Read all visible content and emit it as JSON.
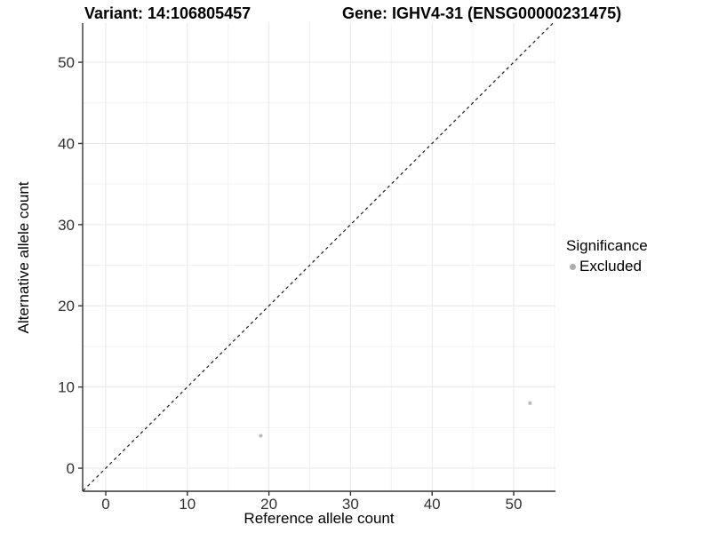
{
  "header": {
    "left_title": "Variant: 14:106805457",
    "right_title": "Gene: IGHV4-31 (ENSG00000231475)"
  },
  "chart_data": {
    "type": "scatter",
    "xlabel": "Reference allele count",
    "ylabel": "Alternative allele count",
    "x_ticks": [
      0,
      10,
      20,
      30,
      40,
      50
    ],
    "y_ticks": [
      0,
      10,
      20,
      30,
      40,
      50
    ],
    "x_minor": [
      5,
      15,
      25,
      35,
      45,
      55
    ],
    "y_minor": [
      5,
      15,
      25,
      35,
      45
    ],
    "xlim": [
      -2.83,
      55.12
    ],
    "ylim": [
      -2.84,
      54.82
    ],
    "grid": {
      "major_color": "#e7e7e7",
      "minor_color": "#f3f3f3"
    },
    "axis_color": "#333333",
    "tick_label_color": "#303030",
    "identity_line": {
      "style": "dashed",
      "slope": 1,
      "intercept": 0,
      "color": "#1a1a1a"
    },
    "points": [
      {
        "x": 19,
        "y": 4,
        "series": "Excluded"
      },
      {
        "x": 52,
        "y": 8,
        "series": "Excluded"
      }
    ],
    "point_style": {
      "color": "#b8b8b8",
      "radius": 2
    },
    "legend": {
      "title": "Significance",
      "position": "right",
      "entries": [
        {
          "label": "Excluded",
          "color": "#adadad"
        }
      ]
    }
  }
}
